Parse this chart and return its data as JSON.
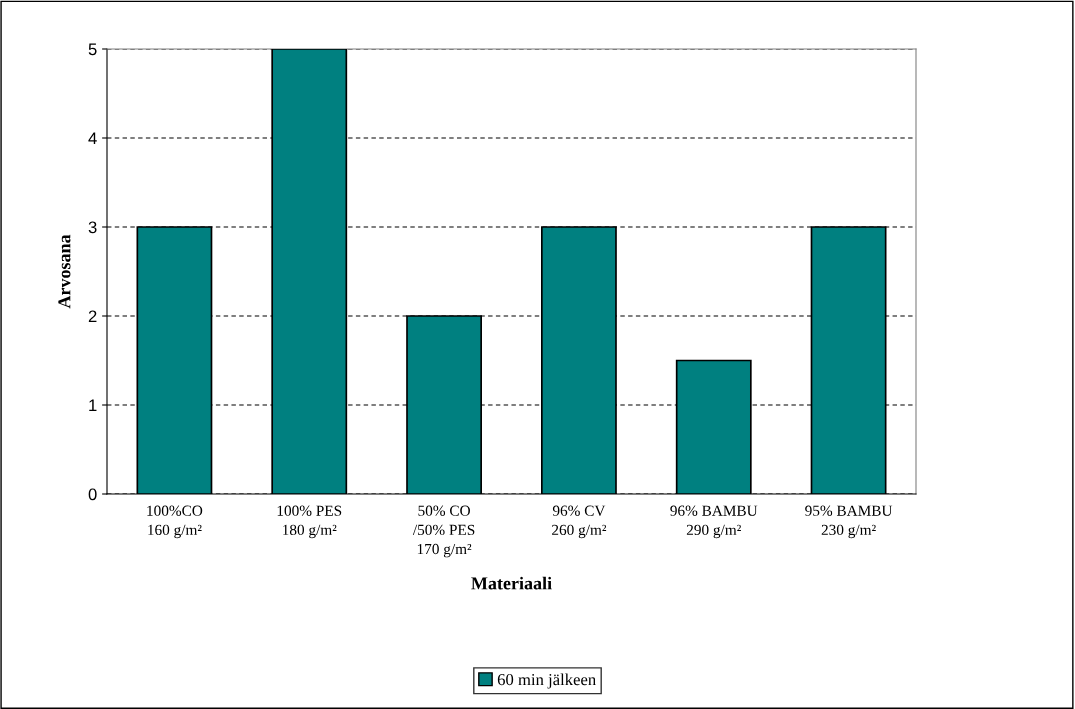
{
  "chart_data": {
    "type": "bar",
    "xlabel": "Materiaali",
    "ylabel": "Arvosana",
    "categories": [
      "100%CO\n160 g/m²",
      "100% PES\n180 g/m²",
      "50% CO\n/50% PES\n170 g/m²",
      "96% CV\n260 g/m²",
      "96% BAMBU\n290 g/m²",
      "95% BAMBU\n230 g/m²"
    ],
    "series": [
      {
        "name": "60 min jälkeen",
        "color": "#008080",
        "values": [
          3,
          5,
          2,
          3,
          1.5,
          3
        ]
      }
    ],
    "ylim": [
      0,
      5
    ],
    "yticks": [
      0,
      1,
      2,
      3,
      4,
      5
    ],
    "grid": "y",
    "legend": "bottom"
  }
}
